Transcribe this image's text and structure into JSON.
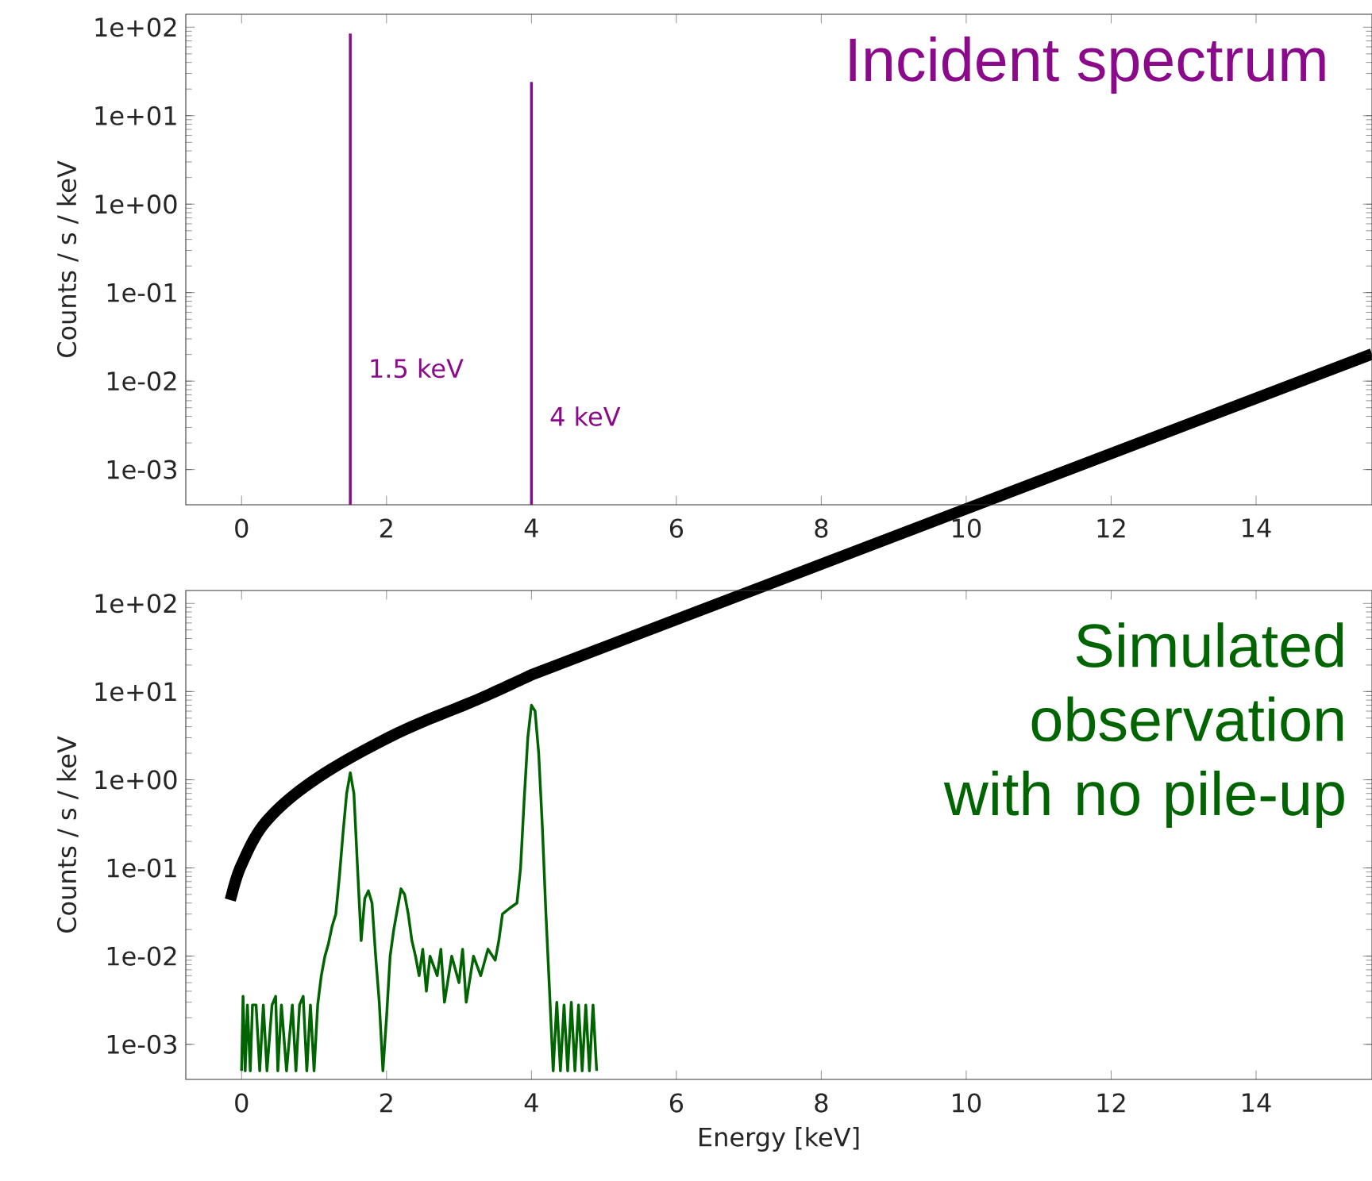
{
  "chart_data": [
    {
      "type": "line",
      "title": "Incident spectrum",
      "ylabel": "Counts / s / keV",
      "log": "y",
      "grid": false,
      "xlim": [
        -0.77,
        15.6
      ],
      "ylim": [
        0.0004,
        140
      ],
      "xticks": [
        0,
        2,
        4,
        6,
        8,
        10,
        12,
        14
      ],
      "yticks": [
        {
          "value": 0.001,
          "label": "1e-03"
        },
        {
          "value": 0.01,
          "label": "1e-02"
        },
        {
          "value": 0.1,
          "label": "1e-01"
        },
        {
          "value": 1,
          "label": "1e+00"
        },
        {
          "value": 10,
          "label": "1e+01"
        },
        {
          "value": 100,
          "label": "1e+02"
        }
      ],
      "series": [
        {
          "color": "#8b0a8b",
          "x": [
            1.5,
            1.5
          ],
          "values": [
            0.0004,
            85
          ]
        },
        {
          "color": "#8b0a8b",
          "x": [
            4,
            4
          ],
          "values": [
            0.0004,
            24
          ]
        }
      ],
      "annotations": [
        {
          "text": "1.5 keV",
          "x": 1.5,
          "y": 0.014
        },
        {
          "text": "4 keV",
          "x": 4,
          "y": 0.004
        }
      ]
    },
    {
      "type": "line",
      "title": "Simulated observation with no pile-up",
      "xlabel": "Energy [keV]",
      "ylabel": "Counts / s / keV",
      "log": "y",
      "grid": false,
      "xlim": [
        -0.77,
        15.6
      ],
      "ylim": [
        0.0004,
        140
      ],
      "xticks": [
        0,
        2,
        4,
        6,
        8,
        10,
        12,
        14
      ],
      "yticks": [
        {
          "value": 0.001,
          "label": "1e-03"
        },
        {
          "value": 0.01,
          "label": "1e-02"
        },
        {
          "value": 0.1,
          "label": "1e-01"
        },
        {
          "value": 1,
          "label": "1e+00"
        },
        {
          "value": 10,
          "label": "1e+01"
        },
        {
          "value": 100,
          "label": "1e+02"
        }
      ],
      "series": [
        {
          "color": "#006400",
          "x": [
            0.0,
            0.02,
            0.05,
            0.08,
            0.12,
            0.15,
            0.2,
            0.25,
            0.3,
            0.35,
            0.42,
            0.47,
            0.5,
            0.55,
            0.62,
            0.7,
            0.75,
            0.8,
            0.85,
            0.9,
            0.95,
            1.0,
            1.05,
            1.1,
            1.15,
            1.2,
            1.25,
            1.3,
            1.35,
            1.4,
            1.45,
            1.5,
            1.55,
            1.6,
            1.65,
            1.7,
            1.75,
            1.8,
            1.85,
            1.9,
            1.95,
            2.0,
            2.05,
            2.1,
            2.2,
            2.25,
            2.3,
            2.35,
            2.4,
            2.45,
            2.5,
            2.55,
            2.6,
            2.7,
            2.75,
            2.8,
            2.9,
            3.0,
            3.05,
            3.1,
            3.2,
            3.3,
            3.4,
            3.5,
            3.55,
            3.6,
            3.7,
            3.8,
            3.85,
            3.9,
            3.95,
            4.0,
            4.05,
            4.1,
            4.15,
            4.2,
            4.25,
            4.3,
            4.35,
            4.4,
            4.45,
            4.5,
            4.55,
            4.6,
            4.65,
            4.7,
            4.75,
            4.8,
            4.85,
            4.9
          ],
          "values": [
            0.0005,
            0.0035,
            0.0005,
            0.0028,
            0.0005,
            0.0028,
            0.0028,
            0.0005,
            0.0028,
            0.0005,
            0.0028,
            0.0035,
            0.0005,
            0.0028,
            0.0005,
            0.0028,
            0.0005,
            0.0028,
            0.0035,
            0.0005,
            0.0028,
            0.0005,
            0.0028,
            0.006,
            0.01,
            0.014,
            0.022,
            0.03,
            0.08,
            0.25,
            0.7,
            1.2,
            0.7,
            0.1,
            0.015,
            0.045,
            0.055,
            0.04,
            0.01,
            0.003,
            0.0005,
            0.002,
            0.01,
            0.02,
            0.058,
            0.05,
            0.03,
            0.015,
            0.01,
            0.006,
            0.012,
            0.004,
            0.01,
            0.006,
            0.012,
            0.003,
            0.01,
            0.005,
            0.012,
            0.003,
            0.01,
            0.006,
            0.012,
            0.009,
            0.015,
            0.03,
            0.035,
            0.04,
            0.1,
            0.6,
            3,
            7,
            6,
            2,
            0.3,
            0.03,
            0.004,
            0.0005,
            0.003,
            0.0005,
            0.0028,
            0.0005,
            0.003,
            0.0005,
            0.0028,
            0.0005,
            0.0028,
            0.0005,
            0.0028,
            0.0005
          ]
        }
      ]
    }
  ]
}
